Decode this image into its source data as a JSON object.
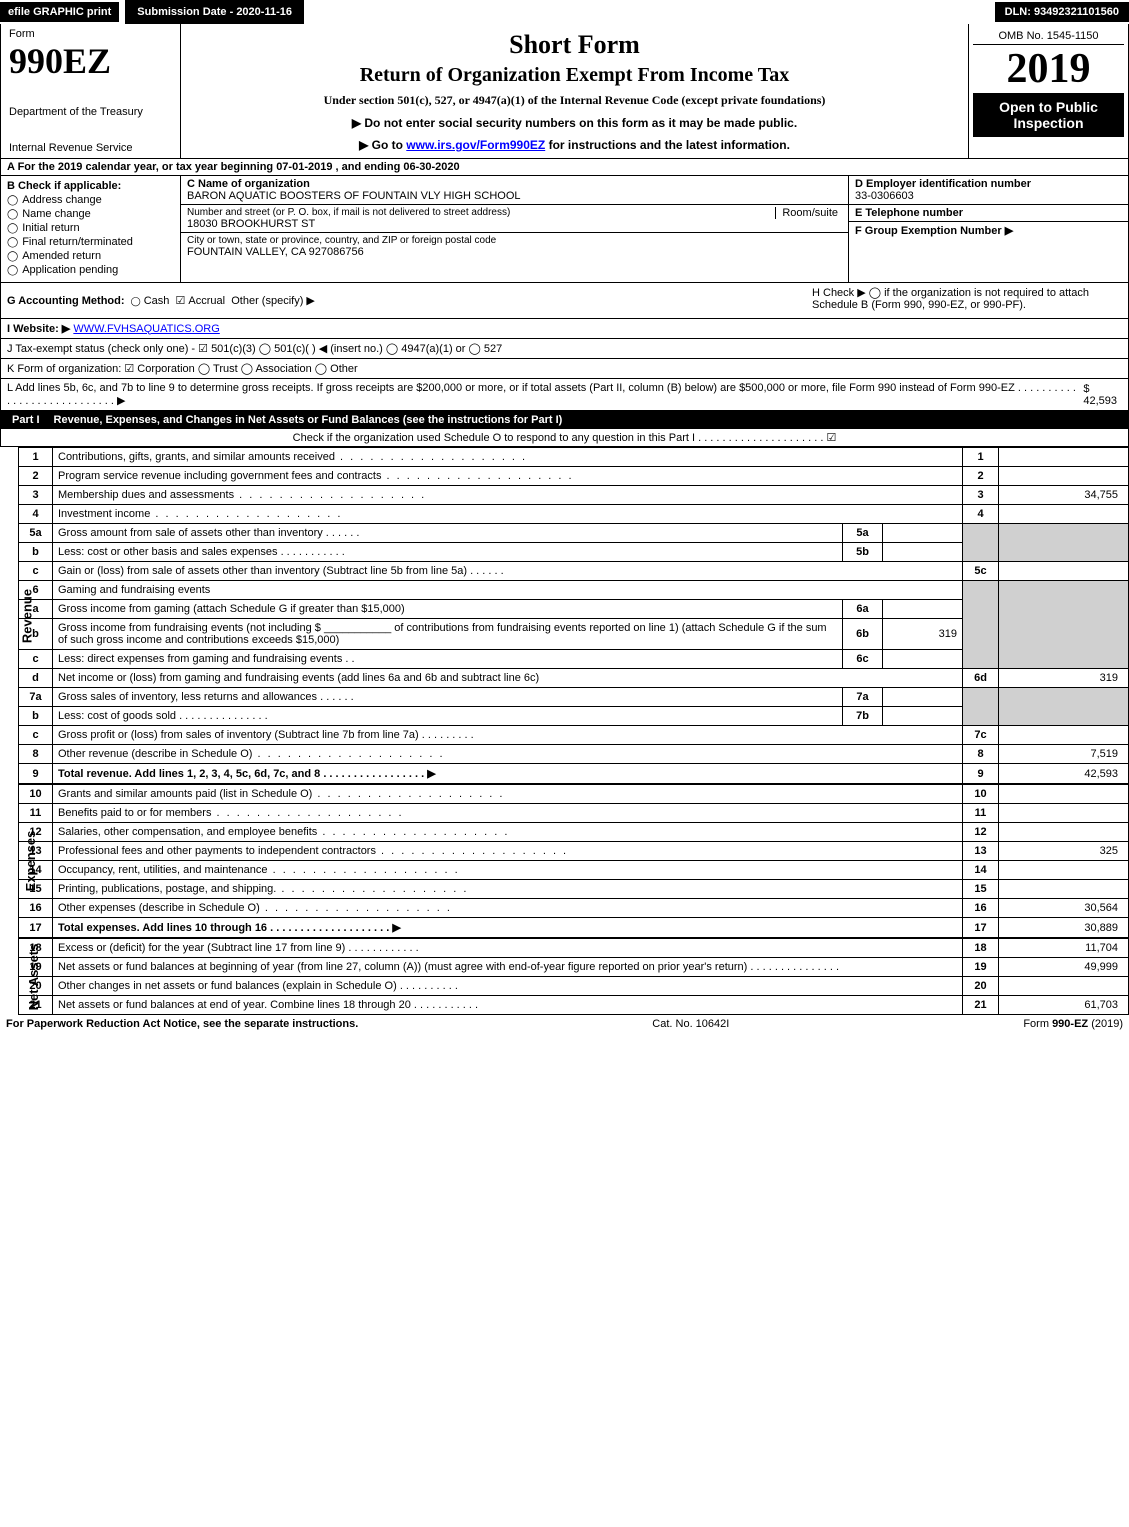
{
  "top": {
    "efile": "efile GRAPHIC print",
    "submission": "Submission Date - 2020-11-16",
    "dln": "DLN: 93492321101560"
  },
  "header": {
    "form_label": "Form",
    "form_number": "990EZ",
    "dept1": "Department of the Treasury",
    "dept2": "Internal Revenue Service",
    "title1": "Short Form",
    "title2": "Return of Organization Exempt From Income Tax",
    "subtitle": "Under section 501(c), 527, or 4947(a)(1) of the Internal Revenue Code (except private foundations)",
    "warn": "▶ Do not enter social security numbers on this form as it may be made public.",
    "goto": "▶ Go to www.irs.gov/Form990EZ for instructions and the latest information.",
    "goto_link": "www.irs.gov/Form990EZ",
    "omb": "OMB No. 1545-1150",
    "year": "2019",
    "open": "Open to Public Inspection"
  },
  "rowA": "A  For the 2019 calendar year, or tax year beginning 07-01-2019 , and ending 06-30-2020",
  "colB": {
    "title": "B  Check if applicable:",
    "items": [
      "Address change",
      "Name change",
      "Initial return",
      "Final return/terminated",
      "Amended return",
      "Application pending"
    ]
  },
  "colC": {
    "c_lab": "C Name of organization",
    "c_val": "BARON AQUATIC BOOSTERS OF FOUNTAIN VLY HIGH SCHOOL",
    "addr_lab": "Number and street (or P. O. box, if mail is not delivered to street address)",
    "addr_val": "18030 BROOKHURST ST",
    "room_lab": "Room/suite",
    "city_lab": "City or town, state or province, country, and ZIP or foreign postal code",
    "city_val": "FOUNTAIN VALLEY, CA  927086756"
  },
  "colD": {
    "d_lab": "D Employer identification number",
    "d_val": "33-0306603",
    "e_lab": "E Telephone number",
    "f_lab": "F Group Exemption Number  ▶"
  },
  "rowG": {
    "g": "G Accounting Method:",
    "cash": "Cash",
    "accrual": "Accrual",
    "other": "Other (specify) ▶",
    "h": "H  Check ▶  ◯  if the organization is not required to attach Schedule B (Form 990, 990-EZ, or 990-PF)."
  },
  "rowI": {
    "lab": "I Website: ▶",
    "val": "WWW.FVHSAQUATICS.ORG"
  },
  "rowJ": "J Tax-exempt status (check only one) -  ☑ 501(c)(3)  ◯ 501(c)(  ) ◀ (insert no.)  ◯ 4947(a)(1) or  ◯ 527",
  "rowK": "K Form of organization:   ☑ Corporation   ◯ Trust   ◯ Association   ◯ Other",
  "rowL": {
    "text": "L Add lines 5b, 6c, and 7b to line 9 to determine gross receipts. If gross receipts are $200,000 or more, or if total assets (Part II, column (B) below) are $500,000 or more, file Form 990 instead of Form 990-EZ  .  .  .  .  .  .  .  .  .  .  .  .  .  .  .  .  .  .  .  .  .  .  .  .  .  .  .  .  ▶",
    "amt": "$ 42,593"
  },
  "part1": {
    "label": "Part I",
    "title": "Revenue, Expenses, and Changes in Net Assets or Fund Balances (see the instructions for Part I)",
    "sub": "Check if the organization used Schedule O to respond to any question in this Part I .  .  .  .  .  .  .  .  .  .  .  .  .  .  .  .  .  .  .  .  .  ☑"
  },
  "revenue_side": "Revenue",
  "expenses_side": "Expenses",
  "netassets_side": "Net Assets",
  "lines": {
    "l1": {
      "n": "1",
      "d": "Contributions, gifts, grants, and similar amounts received",
      "r": "1",
      "a": ""
    },
    "l2": {
      "n": "2",
      "d": "Program service revenue including government fees and contracts",
      "r": "2",
      "a": ""
    },
    "l3": {
      "n": "3",
      "d": "Membership dues and assessments",
      "r": "3",
      "a": "34,755"
    },
    "l4": {
      "n": "4",
      "d": "Investment income",
      "r": "4",
      "a": ""
    },
    "l5a": {
      "n": "5a",
      "d": "Gross amount from sale of assets other than inventory",
      "sl": "5a",
      "sa": ""
    },
    "l5b": {
      "n": "b",
      "d": "Less: cost or other basis and sales expenses",
      "sl": "5b",
      "sa": ""
    },
    "l5c": {
      "n": "c",
      "d": "Gain or (loss) from sale of assets other than inventory (Subtract line 5b from line 5a)",
      "r": "5c",
      "a": ""
    },
    "l6h": {
      "n": "6",
      "d": "Gaming and fundraising events"
    },
    "l6a": {
      "n": "a",
      "d": "Gross income from gaming (attach Schedule G if greater than $15,000)",
      "sl": "6a",
      "sa": ""
    },
    "l6b": {
      "n": "b",
      "d": "Gross income from fundraising events (not including $ ___________ of contributions from fundraising events reported on line 1) (attach Schedule G if the sum of such gross income and contributions exceeds $15,000)",
      "sl": "6b",
      "sa": "319"
    },
    "l6c": {
      "n": "c",
      "d": "Less: direct expenses from gaming and fundraising events",
      "sl": "6c",
      "sa": ""
    },
    "l6d": {
      "n": "d",
      "d": "Net income or (loss) from gaming and fundraising events (add lines 6a and 6b and subtract line 6c)",
      "r": "6d",
      "a": "319"
    },
    "l7a": {
      "n": "7a",
      "d": "Gross sales of inventory, less returns and allowances",
      "sl": "7a",
      "sa": ""
    },
    "l7b": {
      "n": "b",
      "d": "Less: cost of goods sold",
      "sl": "7b",
      "sa": ""
    },
    "l7c": {
      "n": "c",
      "d": "Gross profit or (loss) from sales of inventory (Subtract line 7b from line 7a)",
      "r": "7c",
      "a": ""
    },
    "l8": {
      "n": "8",
      "d": "Other revenue (describe in Schedule O)",
      "r": "8",
      "a": "7,519"
    },
    "l9": {
      "n": "9",
      "d": "Total revenue. Add lines 1, 2, 3, 4, 5c, 6d, 7c, and 8   .  .  .  .  .  .  .  .  .  .  .  .  .  .  .  .  .  ▶",
      "r": "9",
      "a": "42,593"
    },
    "l10": {
      "n": "10",
      "d": "Grants and similar amounts paid (list in Schedule O)",
      "r": "10",
      "a": ""
    },
    "l11": {
      "n": "11",
      "d": "Benefits paid to or for members",
      "r": "11",
      "a": ""
    },
    "l12": {
      "n": "12",
      "d": "Salaries, other compensation, and employee benefits",
      "r": "12",
      "a": ""
    },
    "l13": {
      "n": "13",
      "d": "Professional fees and other payments to independent contractors",
      "r": "13",
      "a": "325"
    },
    "l14": {
      "n": "14",
      "d": "Occupancy, rent, utilities, and maintenance",
      "r": "14",
      "a": ""
    },
    "l15": {
      "n": "15",
      "d": "Printing, publications, postage, and shipping.",
      "r": "15",
      "a": ""
    },
    "l16": {
      "n": "16",
      "d": "Other expenses (describe in Schedule O)",
      "r": "16",
      "a": "30,564"
    },
    "l17": {
      "n": "17",
      "d": "Total expenses. Add lines 10 through 16   .  .  .  .  .  .  .  .  .  .  .  .  .  .  .  .  .  .  .  .  ▶",
      "r": "17",
      "a": "30,889"
    },
    "l18": {
      "n": "18",
      "d": "Excess or (deficit) for the year (Subtract line 17 from line 9)",
      "r": "18",
      "a": "11,704"
    },
    "l19": {
      "n": "19",
      "d": "Net assets or fund balances at beginning of year (from line 27, column (A)) (must agree with end-of-year figure reported on prior year's return)",
      "r": "19",
      "a": "49,999"
    },
    "l20": {
      "n": "20",
      "d": "Other changes in net assets or fund balances (explain in Schedule O)",
      "r": "20",
      "a": ""
    },
    "l21": {
      "n": "21",
      "d": "Net assets or fund balances at end of year. Combine lines 18 through 20",
      "r": "21",
      "a": "61,703"
    }
  },
  "footer": {
    "left": "For Paperwork Reduction Act Notice, see the separate instructions.",
    "mid": "Cat. No. 10642I",
    "right": "Form 990-EZ (2019)"
  }
}
